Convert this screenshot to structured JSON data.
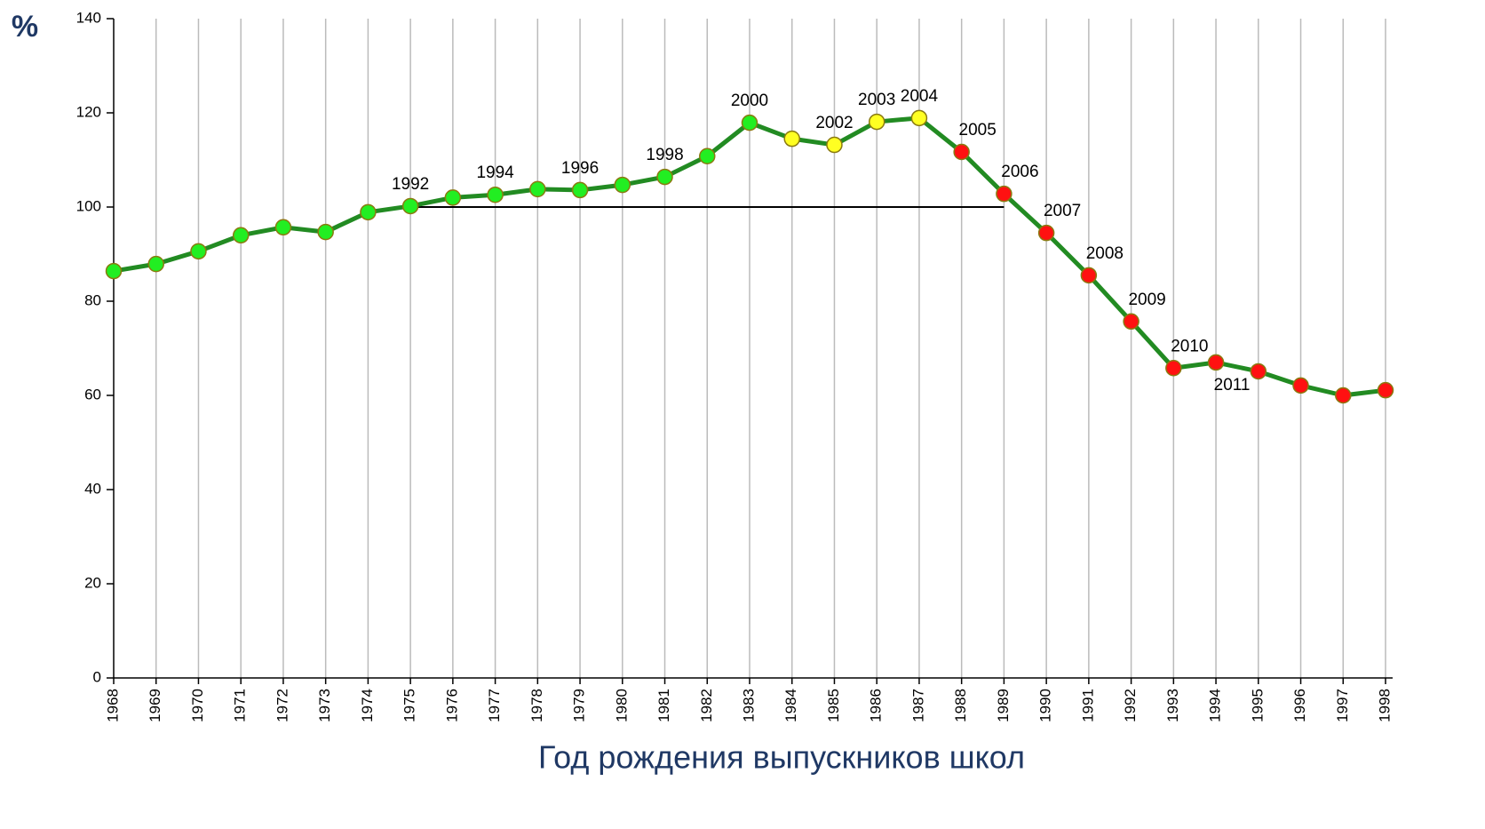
{
  "chart_data": {
    "type": "line",
    "ylabel": "%",
    "xlabel": "Год рождения выпускников школ",
    "categories": [
      "1968",
      "1969",
      "1970",
      "1971",
      "1972",
      "1973",
      "1974",
      "1975",
      "1976",
      "1977",
      "1978",
      "1979",
      "1980",
      "1981",
      "1982",
      "1983",
      "1984",
      "1985",
      "1986",
      "1987",
      "1988",
      "1989",
      "1990",
      "1991",
      "1992",
      "1993",
      "1994",
      "1995",
      "1996",
      "1997",
      "1998"
    ],
    "series": [
      {
        "color": "#228b22",
        "values": [
          86.4,
          87.9,
          90.6,
          94,
          95.7,
          94.7,
          98.9,
          100.2,
          102,
          102.6,
          103.8,
          103.6,
          104.7,
          106.4,
          110.8,
          117.9,
          114.5,
          113.2,
          118.1,
          118.9,
          111.7,
          102.8,
          94.5,
          85.5,
          75.7,
          65.8,
          67,
          65.1,
          62.1,
          60,
          61.1
        ],
        "point_colors": [
          "#22ee22",
          "#22ee22",
          "#22ee22",
          "#22ee22",
          "#22ee22",
          "#22ee22",
          "#22ee22",
          "#22ee22",
          "#22ee22",
          "#22ee22",
          "#22ee22",
          "#22ee22",
          "#22ee22",
          "#22ee22",
          "#22ee22",
          "#22ee22",
          "#ffff22",
          "#ffff22",
          "#ffff22",
          "#ffff22",
          "#ff1111",
          "#ff1111",
          "#ff1111",
          "#ff1111",
          "#ff1111",
          "#ff1111",
          "#ff1111",
          "#ff1111",
          "#ff1111",
          "#ff1111",
          "#ff1111"
        ],
        "point_labels": [
          null,
          null,
          null,
          null,
          null,
          null,
          null,
          "1992",
          null,
          "1994",
          null,
          "1996",
          null,
          "1998",
          null,
          "2000",
          null,
          "2002",
          "2003",
          "2004",
          "2005",
          "2006",
          "2007",
          "2008",
          "2009",
          "2010",
          "2011",
          null,
          null,
          null,
          null
        ]
      }
    ],
    "reference_line": {
      "y": 100,
      "from": "1975",
      "to": "1989"
    },
    "ylim": [
      0,
      140
    ],
    "yticks": [
      0,
      20,
      40,
      60,
      80,
      100,
      120,
      140
    ],
    "grid": "x"
  }
}
